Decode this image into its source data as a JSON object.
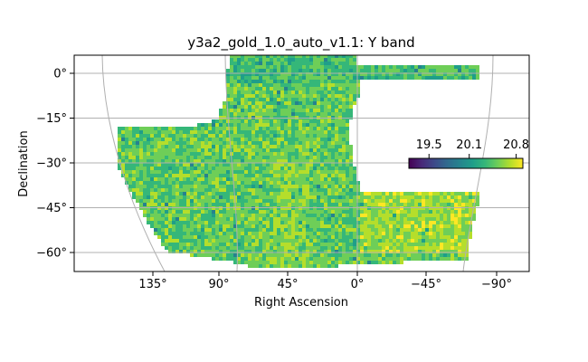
{
  "chart_data": {
    "type": "heatmap",
    "title": "y3a2_gold_1.0_auto_v1.1: Y band",
    "xlabel": "Right Ascension",
    "ylabel": "Declination",
    "projection": "mollweide-like sky map",
    "x_ticks": [
      "135°",
      "90°",
      "45°",
      "0°",
      "−45°",
      "−90°"
    ],
    "y_ticks": [
      "0°",
      "−15°",
      "−30°",
      "−45°",
      "−60°"
    ],
    "y_tick_values": [
      0,
      -15,
      -30,
      -45,
      -60
    ],
    "ylim": [
      -66,
      6
    ],
    "grid": true,
    "colormap": "viridis",
    "colorbar": {
      "ticks": [
        "19.5",
        "20.1",
        "20.8"
      ],
      "tick_values": [
        19.5,
        20.1,
        20.8
      ],
      "range": [
        19.2,
        20.9
      ],
      "placement": "inside-right"
    }
  },
  "colors": {
    "viridis": [
      "#440154",
      "#482878",
      "#3e4989",
      "#31688e",
      "#26828e",
      "#1f9e89",
      "#35b779",
      "#6ece58",
      "#b5de2b",
      "#fde725"
    ],
    "grid": "#b0b0b0",
    "axes": "#000000"
  }
}
